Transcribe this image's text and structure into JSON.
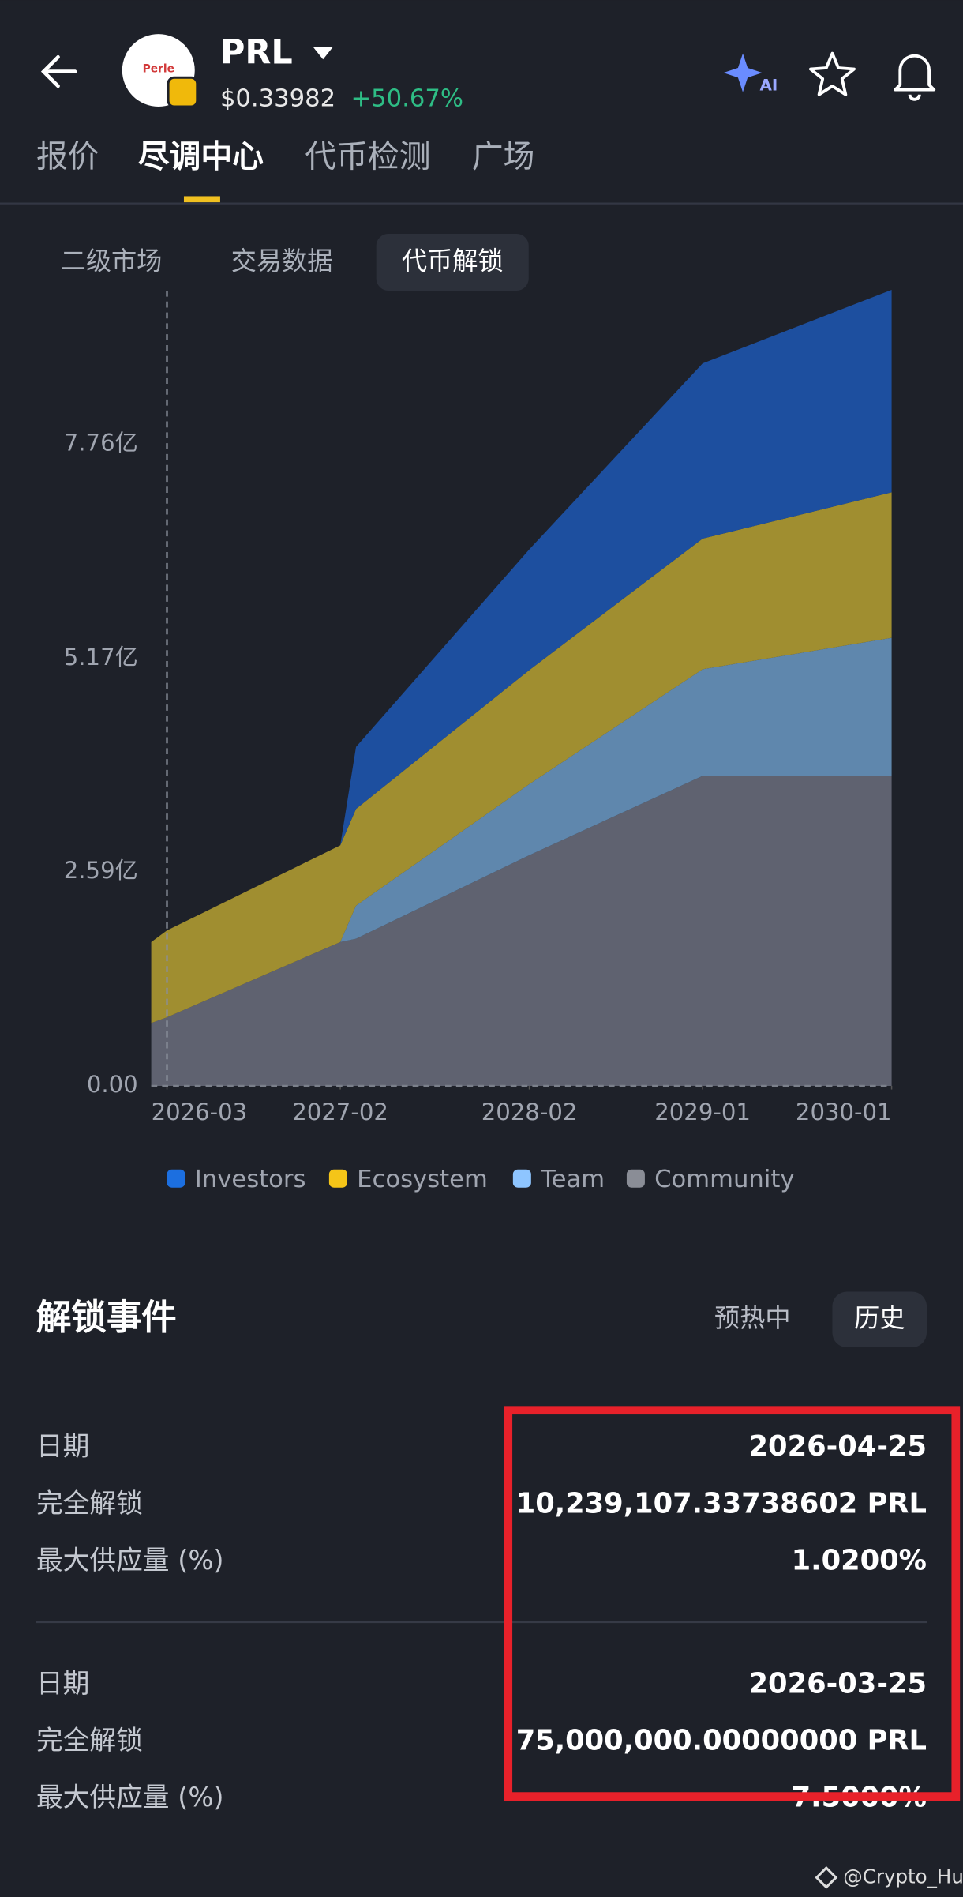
{
  "header": {
    "logo_text": "Perle",
    "symbol": "PRL",
    "price": "$0.33982",
    "change": "+50.67%",
    "ai_label": "AI"
  },
  "tabs": [
    "报价",
    "尽调中心",
    "代币检测",
    "广场"
  ],
  "subtabs": [
    "二级市场",
    "交易数据",
    "代币解锁"
  ],
  "chart_data": {
    "type": "area",
    "stacked": true,
    "x": [
      "2026-02",
      "2026-03",
      "2027-02",
      "2027-03",
      "2028-02",
      "2029-01",
      "2030-01"
    ],
    "series": [
      {
        "name": "Investors",
        "color": "#1d4f9f",
        "legend_color": "#1c6fe0",
        "values": [
          0,
          0,
          0,
          0.75,
          1.46,
          2.12,
          2.45
        ]
      },
      {
        "name": "Ecosystem",
        "color": "#a08e30",
        "legend_color": "#f5c518",
        "values": [
          0.98,
          1.05,
          1.17,
          1.17,
          1.38,
          1.58,
          1.76
        ]
      },
      {
        "name": "Team",
        "color": "#5f87ad",
        "legend_color": "#8ec5ff",
        "values": [
          0,
          0,
          0,
          0.4,
          0.86,
          1.29,
          1.67
        ]
      },
      {
        "name": "Community",
        "color": "#5f6270",
        "legend_color": "#8a8d96",
        "values": [
          0.76,
          0.83,
          1.74,
          1.78,
          2.79,
          3.75,
          3.75
        ]
      }
    ],
    "xlim": [
      "2026-02",
      "2030-01"
    ],
    "xticks": [
      "2026-03",
      "2027-02",
      "2028-02",
      "2029-01",
      "2030-01"
    ],
    "ylim": [
      0,
      9.62
    ],
    "yticks": [
      {
        "value": 0,
        "label": "0.00"
      },
      {
        "value": 2.59,
        "label": "2.59亿"
      },
      {
        "value": 5.17,
        "label": "5.17亿"
      },
      {
        "value": 7.76,
        "label": "7.76亿"
      }
    ],
    "grid": false,
    "legend": "bottom"
  },
  "events": {
    "title": "解锁事件",
    "filters": [
      "预热中",
      "历史"
    ],
    "items": [
      {
        "rows": [
          [
            "日期",
            "2026-04-25"
          ],
          [
            "完全解锁",
            "10,239,107.33738602 PRL"
          ],
          [
            "最大供应量 (%)",
            "1.0200%"
          ]
        ]
      },
      {
        "rows": [
          [
            "日期",
            "2026-03-25"
          ],
          [
            "完全解锁",
            "75,000,000.00000000 PRL"
          ],
          [
            "最大供应量 (%)",
            "7.5000%"
          ]
        ]
      }
    ]
  },
  "watermark": "@Crypto_Hu"
}
